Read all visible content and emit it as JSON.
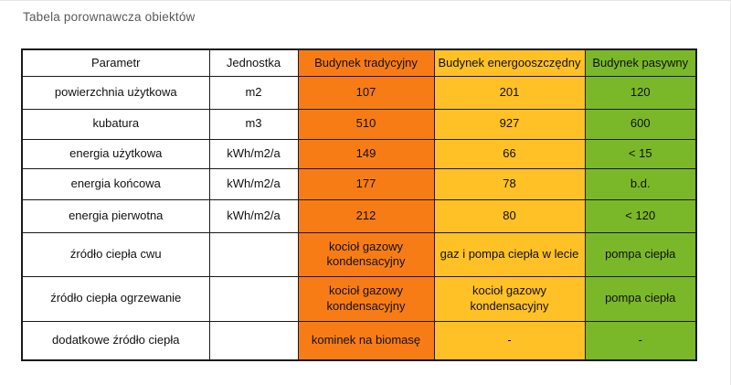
{
  "page": {
    "title": "Tabela porownawcza obiektów"
  },
  "colors": {
    "traditional_column": "#f87c15",
    "energy_saving_column": "#ffc125",
    "passive_column": "#7ab829",
    "grid_border": "#1a1a1a",
    "title_text": "#595959"
  },
  "chart_data": {
    "type": "table",
    "title": "Tabela porownawcza obiektów",
    "columns": [
      "Parametr",
      "Jednostka",
      "Budynek tradycyjny",
      "Budynek energooszczędny",
      "Budynek pasywny"
    ],
    "column_colors": [
      "#ffffff",
      "#ffffff",
      "#f87c15",
      "#ffc125",
      "#7ab829"
    ],
    "rows": [
      [
        "powierzchnia użytkowa",
        "m2",
        "107",
        "201",
        "120"
      ],
      [
        "kubatura",
        "m3",
        "510",
        "927",
        "600"
      ],
      [
        "energia użytkowa",
        "kWh/m2/a",
        "149",
        "66",
        "< 15"
      ],
      [
        "energia końcowa",
        "kWh/m2/a",
        "177",
        "78",
        "b.d."
      ],
      [
        "energia pierwotna",
        "kWh/m2/a",
        "212",
        "80",
        "< 120"
      ],
      [
        "źródło ciepła cwu",
        "",
        "kocioł gazowy kondensacyjny",
        "gaz i pompa ciepła w lecie",
        "pompa ciepła"
      ],
      [
        "źródło ciepła ogrzewanie",
        "",
        "kocioł gazowy kondensacyjny",
        "kocioł gazowy kondensacyjny",
        "pompa ciepła"
      ],
      [
        "dodatkowe źródło ciepła",
        "",
        "kominek na biomasę",
        "-",
        "-"
      ]
    ]
  }
}
